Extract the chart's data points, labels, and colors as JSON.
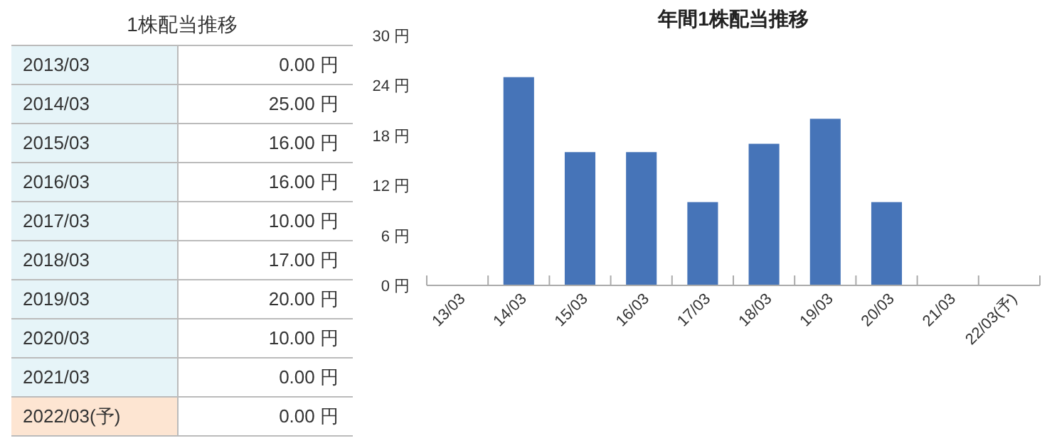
{
  "chart_data": [
    {
      "type": "other",
      "title": "1株配当推移",
      "categories": [
        "2013/03",
        "2014/03",
        "2015/03",
        "2016/03",
        "2017/03",
        "2018/03",
        "2019/03",
        "2020/03",
        "2021/03",
        "2022/03(予)"
      ],
      "value_labels": [
        "0.00 円",
        "25.00 円",
        "16.00 円",
        "16.00 円",
        "10.00 円",
        "17.00 円",
        "20.00 円",
        "10.00 円",
        "0.00 円",
        "0.00 円"
      ],
      "colors": [
        "#e6f4f8",
        "#e6f4f8",
        "#e6f4f8",
        "#e6f4f8",
        "#e6f4f8",
        "#e6f4f8",
        "#e6f4f8",
        "#e6f4f8",
        "#e6f4f8",
        "#fde5d2"
      ]
    },
    {
      "type": "bar",
      "title": "年間1株配当推移",
      "categories": [
        "13/03",
        "14/03",
        "15/03",
        "16/03",
        "17/03",
        "18/03",
        "19/03",
        "20/03",
        "21/03",
        "22/03(予)"
      ],
      "values": [
        0,
        25,
        16,
        16,
        10,
        17,
        20,
        10,
        0,
        0
      ],
      "color": "#4674b8",
      "ylim": [
        0,
        30
      ],
      "yticks": [
        {
          "value": 0,
          "label": "0 円"
        },
        {
          "value": 6,
          "label": "6 円"
        },
        {
          "value": 12,
          "label": "12 円"
        },
        {
          "value": 18,
          "label": "18 円"
        },
        {
          "value": 24,
          "label": "24 円"
        },
        {
          "value": 30,
          "label": "30 円"
        }
      ],
      "grid": false
    }
  ]
}
